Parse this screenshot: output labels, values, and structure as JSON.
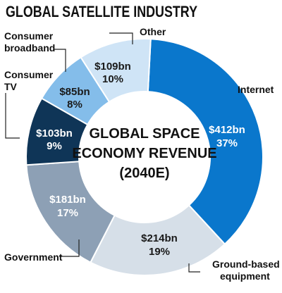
{
  "title": "GLOBAL SATELLITE INDUSTRY",
  "center_label": [
    "GLOBAL SPACE",
    "ECONOMY REVENUE",
    "(2040E)"
  ],
  "chart_data": {
    "type": "pie",
    "donut": true,
    "title": "GLOBAL SATELLITE INDUSTRY",
    "center_text": "GLOBAL SPACE ECONOMY REVENUE (2040E)",
    "unit": "bn",
    "slices": [
      {
        "category": "Internet",
        "value": 412,
        "value_label": "$412bn",
        "percent": 37,
        "percent_label": "37%",
        "color": "#0a77cc",
        "text_color": "#ffffff"
      },
      {
        "category": "Ground-based equipment",
        "value": 214,
        "value_label": "$214bn",
        "percent": 19,
        "percent_label": "19%",
        "color": "#d6dfe8",
        "text_color": "#1a1a1a"
      },
      {
        "category": "Government",
        "value": 181,
        "value_label": "$181bn",
        "percent": 17,
        "percent_label": "17%",
        "color": "#8da0b5",
        "text_color": "#ffffff"
      },
      {
        "category": "Consumer TV",
        "value": 103,
        "value_label": "$103bn",
        "percent": 9,
        "percent_label": "9%",
        "color": "#0f3557",
        "text_color": "#ffffff"
      },
      {
        "category": "Consumer broadband",
        "value": 85,
        "value_label": "$85bn",
        "percent": 8,
        "percent_label": "8%",
        "color": "#84bdea",
        "text_color": "#1a1a1a"
      },
      {
        "category": "Other",
        "value": 109,
        "value_label": "$109bn",
        "percent": 10,
        "percent_label": "10%",
        "color": "#cfe4f6",
        "text_color": "#1a1a1a"
      }
    ]
  },
  "callouts": {
    "internet": [
      "Internet"
    ],
    "ground": [
      "Ground-based",
      "equipment"
    ],
    "government": [
      "Government"
    ],
    "consumer_tv": [
      "Consumer",
      "TV"
    ],
    "consumer_broadband": [
      "Consumer",
      "broadband"
    ],
    "other": [
      "Other"
    ]
  }
}
